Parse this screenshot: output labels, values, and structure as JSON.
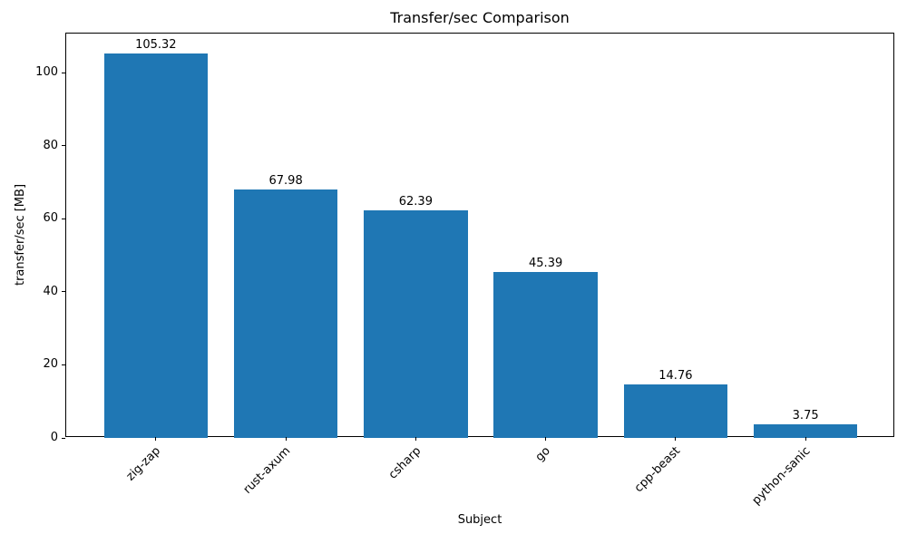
{
  "chart_data": {
    "type": "bar",
    "title": "Transfer/sec Comparison",
    "xlabel": "Subject",
    "ylabel": "transfer/sec [MB]",
    "categories": [
      "zig-zap",
      "rust-axum",
      "csharp",
      "go",
      "cpp-beast",
      "python-sanic"
    ],
    "values": [
      105.32,
      67.98,
      62.39,
      45.39,
      14.76,
      3.75
    ],
    "value_labels": [
      "105.32",
      "67.98",
      "62.39",
      "45.39",
      "14.76",
      "3.75"
    ],
    "yticks": [
      0,
      20,
      40,
      60,
      80,
      100
    ],
    "ytick_labels": [
      "0",
      "20",
      "40",
      "60",
      "80",
      "100"
    ],
    "ylim": [
      0,
      110.7
    ],
    "grid": false,
    "legend_position": "none",
    "colors": {
      "bar": "#1f77b4",
      "text": "#000000",
      "spine": "#000000",
      "background": "#ffffff"
    }
  }
}
